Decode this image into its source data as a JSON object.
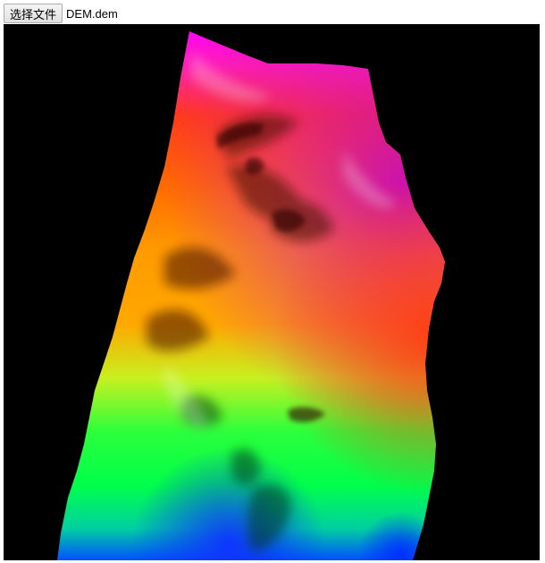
{
  "file_input": {
    "button_label": "选择文件",
    "file_name": "DEM.dem"
  },
  "viewport": {
    "background": "#000000",
    "terrain_colors": [
      "#ff00ff",
      "#ff4400",
      "#ffaa00",
      "#00ff44",
      "#0044ff"
    ]
  }
}
